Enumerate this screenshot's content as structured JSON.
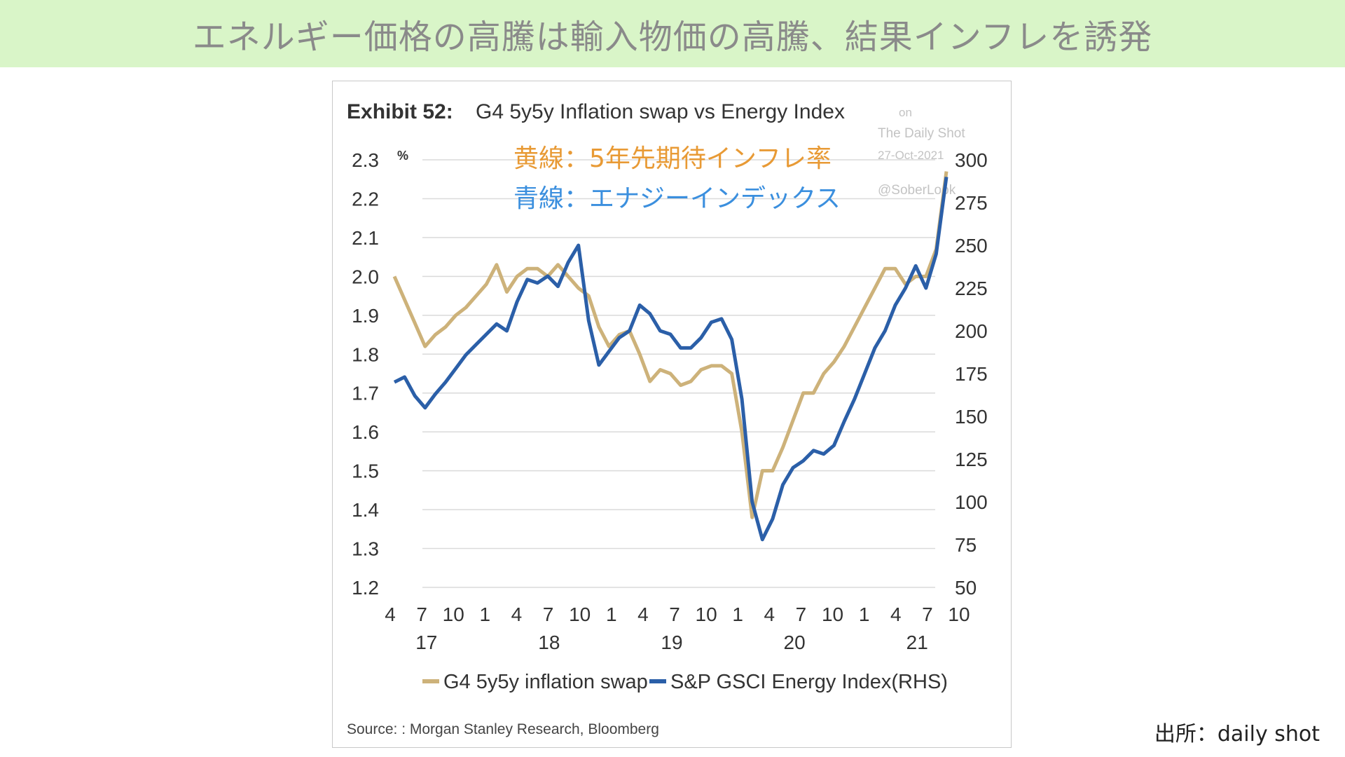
{
  "slide_title": "エネルギー価格の高騰は輸入物価の高騰、結果インフレを誘発",
  "credit": "出所：daily shot",
  "chart_data": {
    "type": "line",
    "exhibit": "Exhibit 52:",
    "title": "G4 5y5y Inflation swap vs Energy Index",
    "left_unit": "%",
    "watermark": [
      "on",
      "The Daily Shot",
      "27-Oct-2021",
      "@SoberLook"
    ],
    "annotations": [
      {
        "text": "黄線：5年先期待インフレ率",
        "color": "#e89a35"
      },
      {
        "text": "青線：エナジーインデックス",
        "color": "#3b8fde"
      }
    ],
    "x_month_ticks": [
      "4",
      "7",
      "10",
      "1",
      "4",
      "7",
      "10",
      "1",
      "4",
      "7",
      "10",
      "1",
      "4",
      "7",
      "10",
      "1",
      "4",
      "7",
      "10"
    ],
    "x_year_ticks": [
      {
        "label": "17",
        "at": "2017-07"
      },
      {
        "label": "18",
        "at": "2018-07"
      },
      {
        "label": "19",
        "at": "2019-07"
      },
      {
        "label": "20",
        "at": "2020-07"
      },
      {
        "label": "21",
        "at": "2021-07"
      }
    ],
    "xlim": [
      "2017-04",
      "2021-10"
    ],
    "ylim_left": [
      1.2,
      2.3
    ],
    "yticks_left": [
      "1.2",
      "1.3",
      "1.4",
      "1.5",
      "1.6",
      "1.7",
      "1.8",
      "1.9",
      "2.0",
      "2.1",
      "2.2",
      "2.3"
    ],
    "ylim_right": [
      50,
      300
    ],
    "yticks_right": [
      "50",
      "75",
      "100",
      "125",
      "150",
      "175",
      "200",
      "225",
      "250",
      "275",
      "300"
    ],
    "grid": true,
    "legend_position": "bottom",
    "source": "Source: : Morgan Stanley Research, Bloomberg",
    "series": [
      {
        "name": "G4 5y5y inflation swap",
        "axis": "left",
        "color": "#cdb27a",
        "x": [
          "2017-04",
          "2017-05",
          "2017-06",
          "2017-07",
          "2017-08",
          "2017-09",
          "2017-10",
          "2017-11",
          "2017-12",
          "2018-01",
          "2018-02",
          "2018-03",
          "2018-04",
          "2018-05",
          "2018-06",
          "2018-07",
          "2018-08",
          "2018-09",
          "2018-10",
          "2018-11",
          "2018-12",
          "2019-01",
          "2019-02",
          "2019-03",
          "2019-04",
          "2019-05",
          "2019-06",
          "2019-07",
          "2019-08",
          "2019-09",
          "2019-10",
          "2019-11",
          "2019-12",
          "2020-01",
          "2020-02",
          "2020-03",
          "2020-04",
          "2020-05",
          "2020-06",
          "2020-07",
          "2020-08",
          "2020-09",
          "2020-10",
          "2020-11",
          "2020-12",
          "2021-01",
          "2021-02",
          "2021-03",
          "2021-04",
          "2021-05",
          "2021-06",
          "2021-07",
          "2021-08",
          "2021-09",
          "2021-10"
        ],
        "values": [
          2.0,
          1.94,
          1.88,
          1.82,
          1.85,
          1.87,
          1.9,
          1.92,
          1.95,
          1.98,
          2.03,
          1.96,
          2.0,
          2.02,
          2.02,
          2.0,
          2.03,
          2.0,
          1.97,
          1.95,
          1.87,
          1.82,
          1.85,
          1.86,
          1.8,
          1.73,
          1.76,
          1.75,
          1.72,
          1.73,
          1.76,
          1.77,
          1.77,
          1.75,
          1.6,
          1.38,
          1.5,
          1.5,
          1.56,
          1.63,
          1.7,
          1.7,
          1.75,
          1.78,
          1.82,
          1.87,
          1.92,
          1.97,
          2.02,
          2.02,
          1.98,
          2.0,
          2.0,
          2.07,
          2.27
        ]
      },
      {
        "name": "S&P GSCI Energy Index(RHS)",
        "axis": "right",
        "color": "#2b5fa8",
        "x": [
          "2017-04",
          "2017-05",
          "2017-06",
          "2017-07",
          "2017-08",
          "2017-09",
          "2017-10",
          "2017-11",
          "2017-12",
          "2018-01",
          "2018-02",
          "2018-03",
          "2018-04",
          "2018-05",
          "2018-06",
          "2018-07",
          "2018-08",
          "2018-09",
          "2018-10",
          "2018-11",
          "2018-12",
          "2019-01",
          "2019-02",
          "2019-03",
          "2019-04",
          "2019-05",
          "2019-06",
          "2019-07",
          "2019-08",
          "2019-09",
          "2019-10",
          "2019-11",
          "2019-12",
          "2020-01",
          "2020-02",
          "2020-03",
          "2020-04",
          "2020-05",
          "2020-06",
          "2020-07",
          "2020-08",
          "2020-09",
          "2020-10",
          "2020-11",
          "2020-12",
          "2021-01",
          "2021-02",
          "2021-03",
          "2021-04",
          "2021-05",
          "2021-06",
          "2021-07",
          "2021-08",
          "2021-09",
          "2021-10"
        ],
        "values": [
          170,
          173,
          162,
          155,
          163,
          170,
          178,
          186,
          192,
          198,
          204,
          200,
          217,
          230,
          228,
          232,
          226,
          240,
          250,
          206,
          180,
          188,
          196,
          200,
          215,
          210,
          200,
          198,
          190,
          190,
          196,
          205,
          207,
          195,
          160,
          100,
          78,
          90,
          110,
          120,
          124,
          130,
          128,
          133,
          147,
          160,
          175,
          190,
          200,
          215,
          225,
          238,
          225,
          245,
          290
        ]
      }
    ]
  }
}
